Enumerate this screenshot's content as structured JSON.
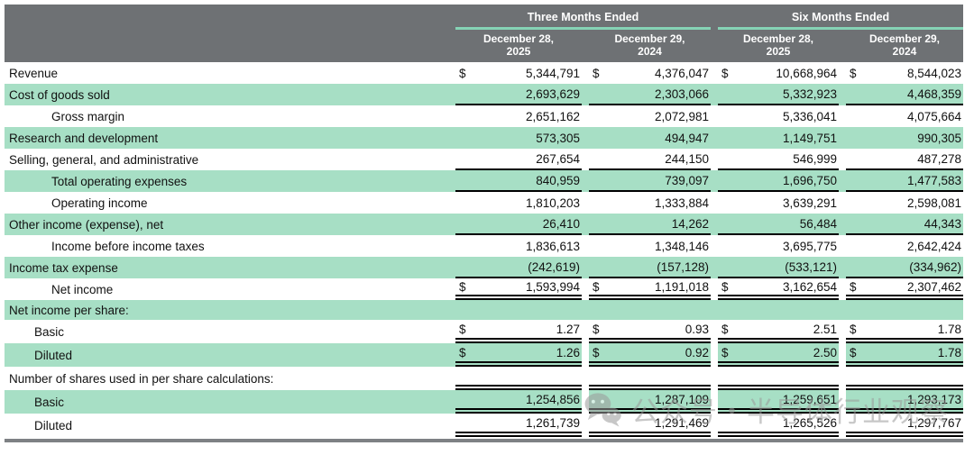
{
  "colors": {
    "header-bg": "#6e7174",
    "header-underline": "#85d3b5",
    "row-green": "#a7dfc5",
    "bottom-rule": "#7e8184",
    "text": "#111111",
    "header-text": "#ffffff",
    "watermark": "#9b9b9b"
  },
  "table": {
    "header": {
      "groups": [
        "Three Months Ended",
        "Six Months Ended"
      ],
      "dates": [
        "December 28,\n2025",
        "December 29,\n2024",
        "December 28,\n2025",
        "December 29,\n2024"
      ]
    },
    "dollar_sign": "$",
    "rows": [
      {
        "label": "Revenue",
        "indent": 0,
        "bg": "white",
        "dollar": true,
        "border": "none",
        "values": [
          "5,344,791",
          "4,376,047",
          "10,668,964",
          "8,544,023"
        ]
      },
      {
        "label": "Cost of goods sold",
        "indent": 0,
        "bg": "green",
        "dollar": false,
        "border": "single",
        "values": [
          "2,693,629",
          "2,303,066",
          "5,332,923",
          "4,468,359"
        ]
      },
      {
        "label": "Gross margin",
        "indent": 1,
        "bg": "white",
        "dollar": false,
        "border": "none",
        "values": [
          "2,651,162",
          "2,072,981",
          "5,336,041",
          "4,075,664"
        ]
      },
      {
        "label": "Research and development",
        "indent": 0,
        "bg": "green",
        "dollar": false,
        "border": "none",
        "values": [
          "573,305",
          "494,947",
          "1,149,751",
          "990,305"
        ]
      },
      {
        "label": "Selling, general, and administrative",
        "indent": 0,
        "bg": "white",
        "dollar": false,
        "border": "single",
        "values": [
          "267,654",
          "244,150",
          "546,999",
          "487,278"
        ]
      },
      {
        "label": "Total operating expenses",
        "indent": 1,
        "bg": "green",
        "dollar": false,
        "border": "single",
        "values": [
          "840,959",
          "739,097",
          "1,696,750",
          "1,477,583"
        ]
      },
      {
        "label": "Operating income",
        "indent": 1,
        "bg": "white",
        "dollar": false,
        "border": "none",
        "values": [
          "1,810,203",
          "1,333,884",
          "3,639,291",
          "2,598,081"
        ]
      },
      {
        "label": "Other income (expense), net",
        "indent": 0,
        "bg": "green",
        "dollar": false,
        "border": "single",
        "values": [
          "26,410",
          "14,262",
          "56,484",
          "44,343"
        ]
      },
      {
        "label": "Income before income taxes",
        "indent": 1,
        "bg": "white",
        "dollar": false,
        "border": "none",
        "values": [
          "1,836,613",
          "1,348,146",
          "3,695,775",
          "2,642,424"
        ]
      },
      {
        "label": "Income tax expense",
        "indent": 0,
        "bg": "green",
        "dollar": false,
        "border": "single",
        "values": [
          "(242,619)",
          "(157,128)",
          "(533,121)",
          "(334,962)"
        ]
      },
      {
        "label": "Net income",
        "indent": 1,
        "bg": "white",
        "dollar": true,
        "border": "double",
        "values": [
          "1,593,994",
          "1,191,018",
          "3,162,654",
          "2,307,462"
        ]
      },
      {
        "label": "Net income per share:",
        "indent": 0,
        "bg": "green",
        "dollar": false,
        "border": "none",
        "values": []
      },
      {
        "label": "Basic",
        "indent": 2,
        "bg": "white",
        "dollar": true,
        "border": "double",
        "values": [
          "1.27",
          "0.93",
          "2.51",
          "1.78"
        ]
      },
      {
        "label": "Diluted",
        "indent": 2,
        "bg": "green-cells",
        "dollar": true,
        "border": "double",
        "values": [
          "1.26",
          "0.92",
          "2.50",
          "1.78"
        ]
      },
      {
        "label": "Number of shares used in per share calculations:",
        "indent": 0,
        "bg": "white",
        "dollar": false,
        "border": "double",
        "values": []
      },
      {
        "label": "Basic",
        "indent": 2,
        "bg": "green-cells",
        "dollar": false,
        "border": "double",
        "values": [
          "1,254,856",
          "1,287,109",
          "1,259,651",
          "1,293,173"
        ]
      },
      {
        "label": "Diluted",
        "indent": 2,
        "bg": "white",
        "dollar": false,
        "border": "double",
        "values": [
          "1,261,739",
          "1,291,469",
          "1,265,526",
          "1,297,767"
        ]
      }
    ]
  },
  "watermark": {
    "text": "公众号・半导体行业观察",
    "icon": "wechat-icon"
  }
}
